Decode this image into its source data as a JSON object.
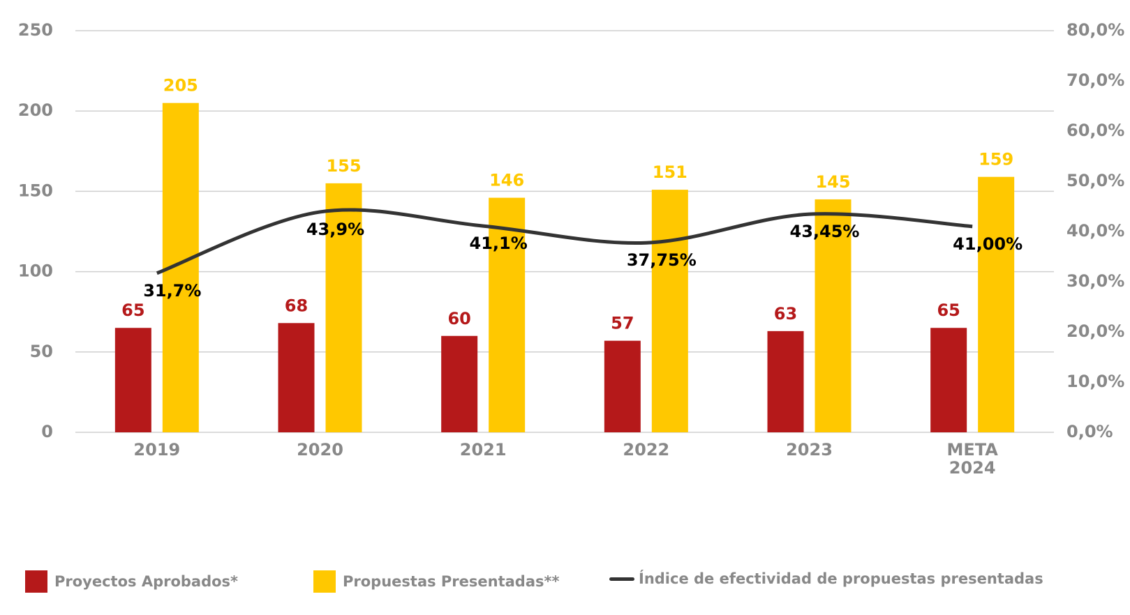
{
  "chart_data": {
    "type": "bar-line",
    "categories": [
      "2019",
      "2020",
      "2021",
      "2022",
      "2023",
      "META 2024"
    ],
    "series": [
      {
        "name": "Proyectos Aprobados*",
        "type": "bar",
        "color": "#b5191a",
        "values": [
          65,
          68,
          60,
          57,
          63,
          65
        ]
      },
      {
        "name": "Propuestas Presentadas**",
        "type": "bar",
        "color": "#ffc800",
        "values": [
          205,
          155,
          146,
          151,
          145,
          159
        ]
      },
      {
        "name": "Índice de efectividad de propuestas presentadas",
        "type": "line",
        "axis": "y2",
        "color": "#333333",
        "values": [
          31.7,
          43.9,
          41.1,
          37.75,
          43.45,
          41.0
        ],
        "value_labels": [
          "31,7%",
          "43,9%",
          "41,1%",
          "37,75%",
          "43,45%",
          "41,00%"
        ]
      }
    ],
    "ylim": [
      0,
      250
    ],
    "yticks": [
      0,
      50,
      100,
      150,
      200,
      250
    ],
    "y2lim": [
      0,
      80
    ],
    "y2ticks": [
      {
        "value": 0,
        "label": "0,0%"
      },
      {
        "value": 10,
        "label": "10,0%"
      },
      {
        "value": 20,
        "label": "20,0%"
      },
      {
        "value": 30,
        "label": "30,0%"
      },
      {
        "value": 40,
        "label": "40,0%"
      },
      {
        "value": 50,
        "label": "50,0%"
      },
      {
        "value": 60,
        "label": "60,0%"
      },
      {
        "value": 70,
        "label": "70,0%"
      },
      {
        "value": 80,
        "label": "80,0%"
      }
    ],
    "grid": true,
    "legend": "bottom"
  }
}
